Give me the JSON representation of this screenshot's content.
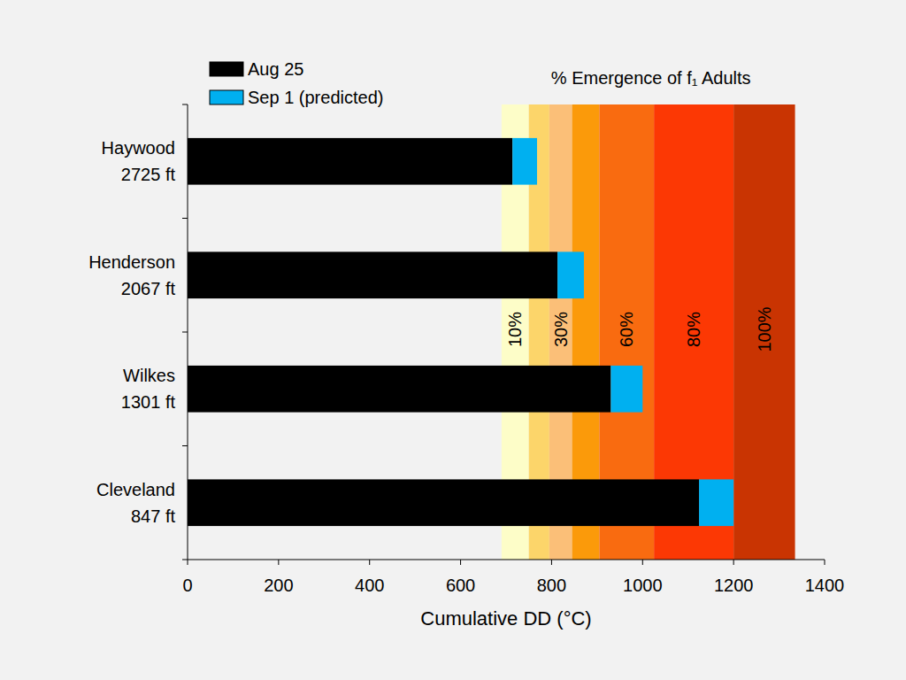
{
  "chart_data": {
    "type": "bar",
    "orientation": "horizontal",
    "stacked": true,
    "legend": "upper left",
    "categories": [
      "Haywood\n2725 ft",
      "Henderson\n2067 ft",
      "Wilkes\n1301 ft",
      "Cleveland\n847 ft"
    ],
    "series": [
      {
        "name": "Aug 25",
        "color": "#000000",
        "values": [
          714,
          813,
          930,
          1124
        ]
      },
      {
        "name": "Sep 1 (predicted)",
        "color": "#00b0f0",
        "values": [
          54,
          58,
          70,
          76
        ]
      }
    ],
    "xlabel": "Cumulative DD (°C)",
    "xlim": [
      0,
      1400
    ],
    "xticks": [
      0,
      200,
      400,
      600,
      800,
      1000,
      1200,
      1400
    ],
    "emergence": {
      "title": "% Emergence of f₁ Adults",
      "edges": [
        690,
        750,
        795,
        845,
        905,
        1025,
        1200,
        1335
      ],
      "colors": [
        "#fdfdc8",
        "#fcd56a",
        "#fbbf78",
        "#fb9a0a",
        "#f96b10",
        "#fc3804",
        "#c93402"
      ],
      "labels": [
        "10%",
        null,
        "30%",
        null,
        "60%",
        "80%",
        "100%"
      ]
    }
  }
}
